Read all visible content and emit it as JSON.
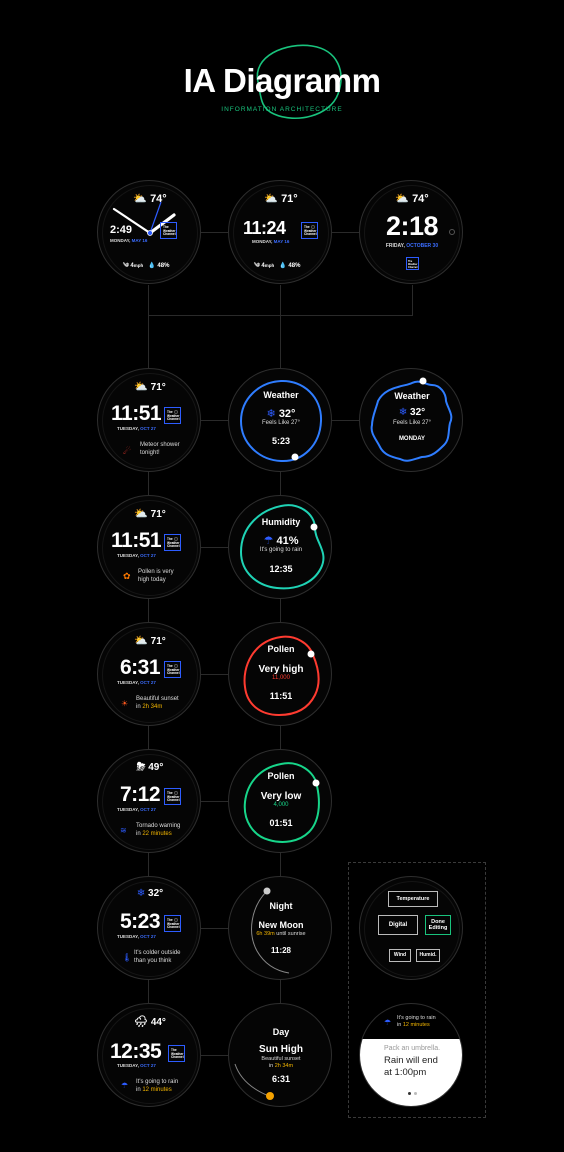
{
  "header": {
    "title": "IA Diagramm",
    "subtitle": "INFORMATION ARCHITECTURE"
  },
  "colors": {
    "accent_green": "#19c37d",
    "brand_blue": "#2d5cff",
    "weather_ring": "#2f7dff",
    "humidity_ring": "#1fd3b5",
    "pollen_high_ring": "#ff3b30",
    "pollen_low_ring": "#17d68a",
    "highlight_yellow": "#f5b700"
  },
  "logo": {
    "line1": "The",
    "line2": "Weather",
    "line3": "Channel"
  },
  "top": [
    {
      "temp": "74°",
      "time": "2:49",
      "date_a": "MONDAY,",
      "date_b": "MAY 16",
      "wind": "4",
      "wind_unit": "mph",
      "humidity": "48%"
    },
    {
      "temp": "71°",
      "time": "11:24",
      "date_a": "MONDAY,",
      "date_b": "MAY 16",
      "wind": "4",
      "wind_unit": "mph",
      "humidity": "48%"
    },
    {
      "temp": "74°",
      "time": "2:18",
      "date_a": "FRIDAY,",
      "date_b": "OCTOBER 30"
    }
  ],
  "left": [
    {
      "temp": "71°",
      "time": "11:51",
      "date_a": "TUESDAY,",
      "date_b": "OCT 27",
      "note1": "Meteor shower",
      "note2": "tonight!",
      "note2_hl": ""
    },
    {
      "temp": "71°",
      "time": "11:51",
      "date_a": "TUESDAY,",
      "date_b": "OCT 27",
      "note1": "Pollen is very",
      "note2": "high today",
      "note2_hl": ""
    },
    {
      "temp": "71°",
      "time": "6:31",
      "date_a": "TUESDAY,",
      "date_b": "OCT 27",
      "note1": "Beautiful sunset",
      "note2": "in ",
      "note2_hl": "2h 34m"
    },
    {
      "temp": "49°",
      "time": "7:12",
      "date_a": "TUESDAY,",
      "date_b": "OCT 27",
      "note1": "Tornado warning",
      "note2": "in ",
      "note2_hl": "22 minutes"
    },
    {
      "temp": "32°",
      "time": "5:23",
      "date_a": "TUESDAY,",
      "date_b": "OCT 27",
      "note1": "It's colder outside",
      "note2": "than you think",
      "note2_hl": ""
    },
    {
      "temp": "44°",
      "time": "12:35",
      "date_a": "TUESDAY,",
      "date_b": "OCT 27",
      "note1": "It's going to rain",
      "note2": "in ",
      "note2_hl": "12 minutes"
    }
  ],
  "middle": [
    {
      "title": "Weather",
      "value": "32°",
      "sub": "Feels Like 27°",
      "time": "5:23"
    },
    {
      "title": "Humidity",
      "value": "41%",
      "sub": "It's going to rain",
      "time": "12:35"
    },
    {
      "title": "Pollen",
      "value": "Very high",
      "sub": "11,000",
      "time": "11:51"
    },
    {
      "title": "Pollen",
      "value": "Very low",
      "sub": "4,000",
      "time": "01:51"
    },
    {
      "title": "Night",
      "value": "New Moon",
      "sub_hl": "6h 39m",
      "sub": " until sunrise",
      "time": "11:28"
    },
    {
      "title": "Day",
      "value": "Sun High",
      "sub": "Beautiful sunset",
      "sub2": "in ",
      "sub2_hl": "2h 34m",
      "time": "6:31"
    }
  ],
  "right_weather": {
    "title": "Weather",
    "value": "32°",
    "sub": "Feels Like 27°",
    "day": "MONDAY"
  },
  "editing": {
    "temperature": "Temperature",
    "digital": "Digital",
    "done": "Done Editing",
    "wind": "Wind",
    "humid": "Humid."
  },
  "rain_card": {
    "line1": "It's going to rain",
    "line2_a": "in ",
    "line2_hl": "12 minutes",
    "hint": "Pack an umbrella.",
    "main1": "Rain will end",
    "main2": "at 1:00pm"
  }
}
